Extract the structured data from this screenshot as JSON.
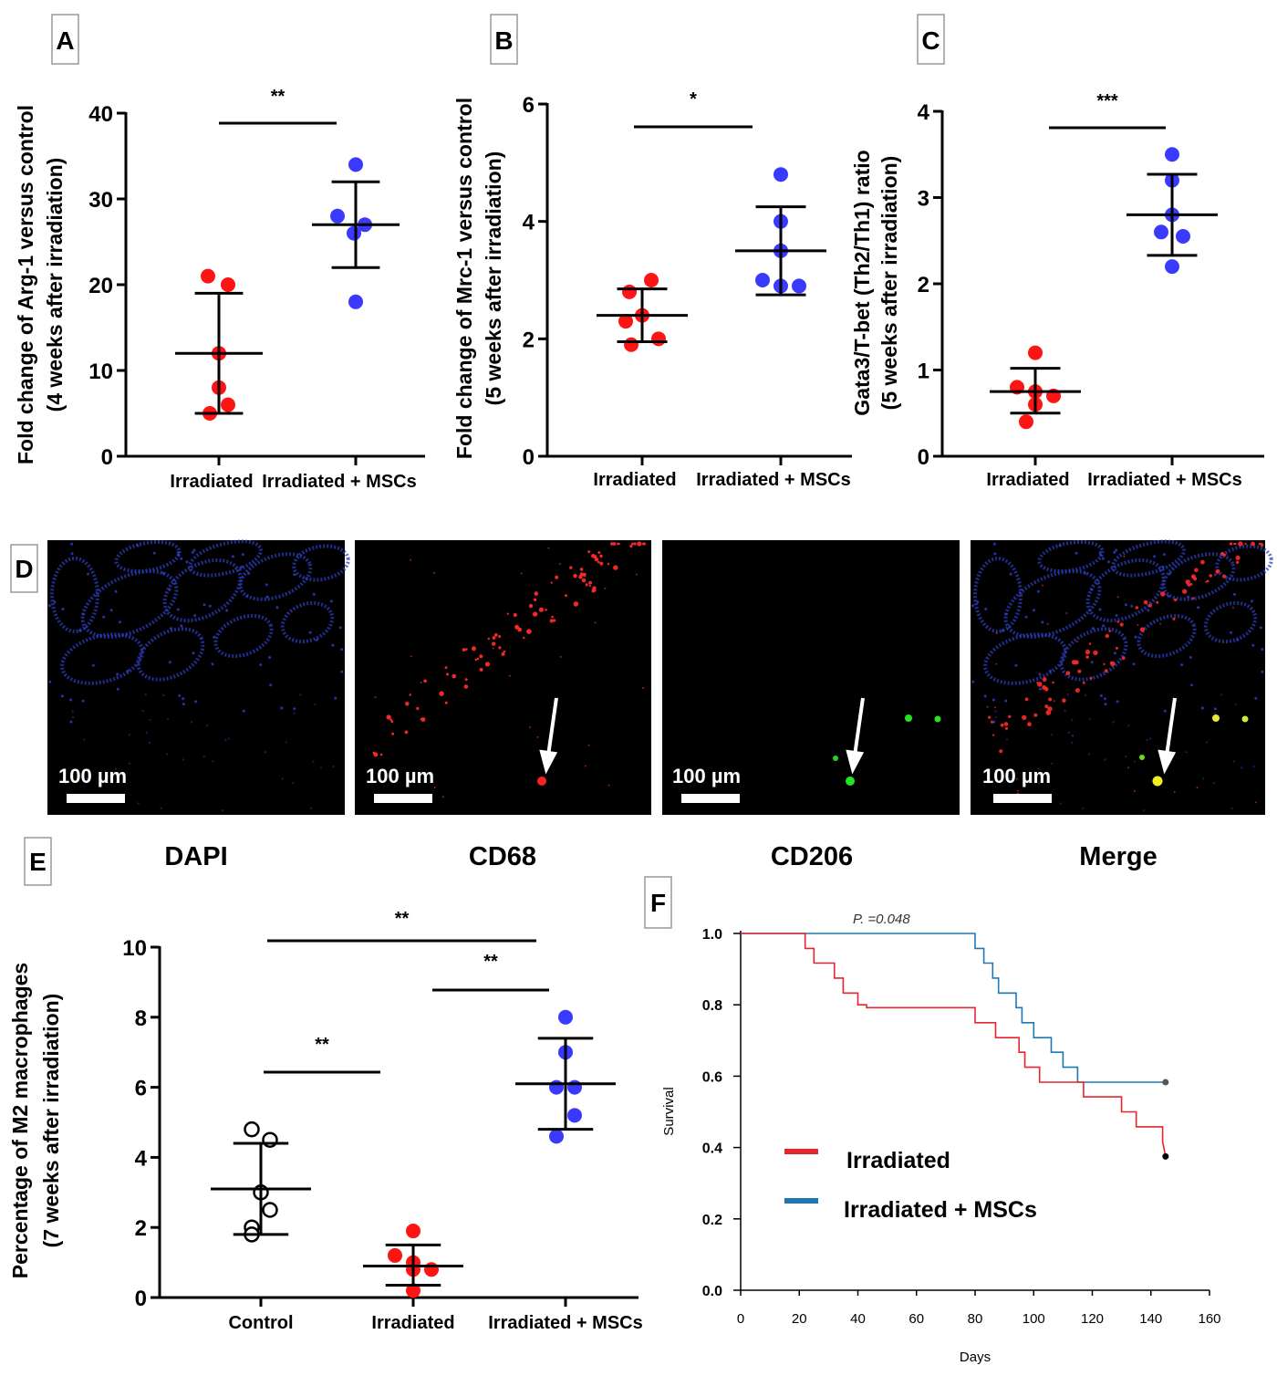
{
  "panels": {
    "A": "A",
    "B": "B",
    "C": "C",
    "D": "D",
    "E": "E",
    "F": "F"
  },
  "colors": {
    "irradiated": "#ff1414",
    "mscs": "#3a3aff",
    "control": "#ffffff",
    "km_irradiated": "#e8242c",
    "km_mscs": "#1f78b4"
  },
  "microscopy": {
    "channels": [
      "DAPI",
      "CD68",
      "CD206",
      "Merge"
    ],
    "scale_bar": "100 µm"
  },
  "chart_data": [
    {
      "panel": "A",
      "type": "scatter",
      "ylabel": [
        "Fold change of Arg-1 versus control",
        "(4 weeks after irradiation)"
      ],
      "categories": [
        "Irradiated",
        "Irradiated + MSCs"
      ],
      "ylim": [
        0,
        40
      ],
      "yticks": [
        "0",
        "10",
        "20",
        "30",
        "40"
      ],
      "series": [
        {
          "name": "Irradiated",
          "values": [
            21,
            20,
            12,
            8,
            6,
            5
          ],
          "mean": 12,
          "sd_low": 5,
          "sd_high": 19
        },
        {
          "name": "Irradiated + MSCs",
          "values": [
            34,
            28,
            27,
            26,
            18
          ],
          "mean": 27,
          "sd_low": 22,
          "sd_high": 32
        }
      ],
      "significance": [
        {
          "from": 0,
          "to": 1,
          "label": "**"
        }
      ]
    },
    {
      "panel": "B",
      "type": "scatter",
      "ylabel": [
        "Fold change of Mrc-1  versus control",
        "(5 weeks after irradiation)"
      ],
      "categories": [
        "Irradiated",
        "Irradiated + MSCs"
      ],
      "ylim": [
        0,
        6
      ],
      "yticks": [
        "0",
        "2",
        "4",
        "6"
      ],
      "series": [
        {
          "name": "Irradiated",
          "values": [
            3.0,
            2.8,
            2.4,
            2.3,
            2.0,
            1.9
          ],
          "mean": 2.4,
          "sd_low": 1.95,
          "sd_high": 2.85
        },
        {
          "name": "Irradiated + MSCs",
          "values": [
            4.8,
            4.0,
            3.5,
            3.0,
            2.9,
            2.9
          ],
          "mean": 3.5,
          "sd_low": 2.75,
          "sd_high": 4.25
        }
      ],
      "significance": [
        {
          "from": 0,
          "to": 1,
          "label": "*"
        }
      ]
    },
    {
      "panel": "C",
      "type": "scatter",
      "ylabel": [
        "Gata3/T-bet (Th2/Th1) ratio",
        "(5 weeks after irradiation)"
      ],
      "categories": [
        "Irradiated",
        "Irradiated + MSCs"
      ],
      "ylim": [
        0,
        4
      ],
      "yticks": [
        "0",
        "1",
        "2",
        "3",
        "4"
      ],
      "series": [
        {
          "name": "Irradiated",
          "values": [
            1.2,
            0.8,
            0.75,
            0.7,
            0.6,
            0.4
          ],
          "mean": 0.75,
          "sd_low": 0.5,
          "sd_high": 1.02
        },
        {
          "name": "Irradiated + MSCs",
          "values": [
            3.5,
            3.2,
            2.8,
            2.6,
            2.55,
            2.2
          ],
          "mean": 2.8,
          "sd_low": 2.33,
          "sd_high": 3.27
        }
      ],
      "significance": [
        {
          "from": 0,
          "to": 1,
          "label": "***"
        }
      ]
    },
    {
      "panel": "E",
      "type": "scatter",
      "ylabel": [
        "Percentage of M2 macrophages",
        "(7 weeks after irradiation)"
      ],
      "categories": [
        "Control",
        "Irradiated",
        "Irradiated + MSCs"
      ],
      "ylim": [
        0,
        10
      ],
      "yticks": [
        "0",
        "2",
        "4",
        "6",
        "8",
        "10"
      ],
      "series": [
        {
          "name": "Control",
          "values": [
            4.8,
            4.5,
            3.0,
            2.5,
            2.0,
            1.8
          ],
          "mean": 3.1,
          "sd_low": 1.8,
          "sd_high": 4.4
        },
        {
          "name": "Irradiated",
          "values": [
            1.9,
            1.2,
            1.0,
            0.8,
            0.8,
            0.2
          ],
          "mean": 0.9,
          "sd_low": 0.35,
          "sd_high": 1.5
        },
        {
          "name": "Irradiated + MSCs",
          "values": [
            8.0,
            7.0,
            6.0,
            6.0,
            5.2,
            4.6
          ],
          "mean": 6.1,
          "sd_low": 4.8,
          "sd_high": 7.4
        }
      ],
      "significance": [
        {
          "from": 0,
          "to": 2,
          "label": "**"
        },
        {
          "from": 1,
          "to": 2,
          "label": "**"
        },
        {
          "from": 0,
          "to": 1,
          "label": "**"
        }
      ]
    },
    {
      "panel": "F",
      "type": "line",
      "subtype": "kaplan-meier",
      "xlabel": "Days",
      "ylabel": "Survival",
      "xlim": [
        0,
        160
      ],
      "ylim": [
        0,
        1
      ],
      "xticks": [
        "0",
        "20",
        "40",
        "60",
        "80",
        "100",
        "120",
        "140",
        "160"
      ],
      "yticks": [
        "0.0",
        "0.2",
        "0.4",
        "0.6",
        "0.8",
        "1.0"
      ],
      "annotation": "P. =0.048",
      "series": [
        {
          "name": "Irradiated",
          "x": [
            0,
            22,
            22,
            25,
            25,
            32,
            32,
            35,
            35,
            40,
            40,
            43,
            43,
            80,
            80,
            87,
            87,
            95,
            95,
            97,
            97,
            102,
            102,
            117,
            117,
            130,
            130,
            135,
            135,
            144,
            144,
            145
          ],
          "y": [
            1.0,
            1.0,
            0.958,
            0.958,
            0.917,
            0.917,
            0.875,
            0.875,
            0.833,
            0.833,
            0.8,
            0.8,
            0.792,
            0.792,
            0.75,
            0.75,
            0.708,
            0.708,
            0.667,
            0.667,
            0.625,
            0.625,
            0.583,
            0.583,
            0.542,
            0.542,
            0.5,
            0.5,
            0.458,
            0.458,
            0.417,
            0.375
          ]
        },
        {
          "name": "Irradiated + MSCs",
          "x": [
            0,
            80,
            80,
            83,
            83,
            86,
            86,
            88,
            88,
            94,
            94,
            96,
            96,
            100,
            100,
            106,
            106,
            110,
            110,
            115,
            115,
            142,
            142,
            145
          ],
          "y": [
            1.0,
            1.0,
            0.958,
            0.958,
            0.917,
            0.917,
            0.875,
            0.875,
            0.833,
            0.833,
            0.792,
            0.792,
            0.75,
            0.75,
            0.708,
            0.708,
            0.667,
            0.667,
            0.625,
            0.625,
            0.583,
            0.583,
            0.583,
            0.583
          ]
        }
      ],
      "censor_points": [
        {
          "x": 145,
          "y": 0.583,
          "series": "Irradiated + MSCs"
        },
        {
          "x": 145,
          "y": 0.375,
          "series": "Irradiated"
        }
      ],
      "legend": [
        "Irradiated",
        "Irradiated + MSCs"
      ]
    }
  ]
}
